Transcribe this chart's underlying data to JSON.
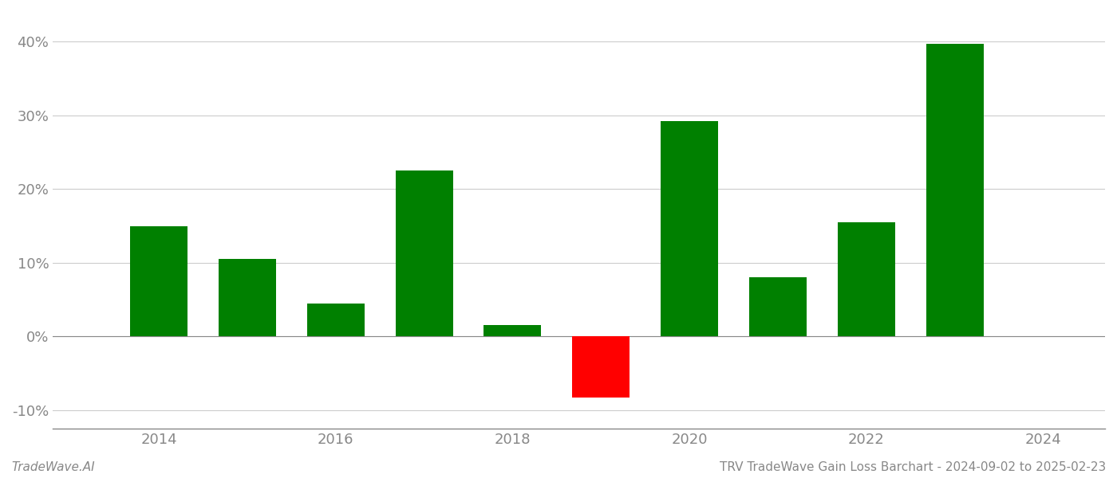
{
  "years": [
    2014,
    2015,
    2016,
    2017,
    2018,
    2019,
    2020,
    2021,
    2022,
    2023
  ],
  "values": [
    14.9,
    10.5,
    4.5,
    22.5,
    1.6,
    -8.3,
    29.2,
    8.0,
    15.5,
    39.7
  ],
  "colors": [
    "#008000",
    "#008000",
    "#008000",
    "#008000",
    "#008000",
    "#ff0000",
    "#008000",
    "#008000",
    "#008000",
    "#008000"
  ],
  "bar_width": 0.65,
  "xlim": [
    2012.8,
    2024.7
  ],
  "ylim": [
    -12.5,
    44.0
  ],
  "xticks": [
    2014,
    2016,
    2018,
    2020,
    2022,
    2024
  ],
  "yticks": [
    -10,
    0,
    10,
    20,
    30,
    40
  ],
  "grid_color": "#cccccc",
  "bg_color": "#ffffff",
  "footer_left": "TradeWave.AI",
  "footer_right": "TRV TradeWave Gain Loss Barchart - 2024-09-02 to 2025-02-23",
  "footer_fontsize": 11,
  "tick_label_fontsize": 13,
  "tick_label_color": "#888888",
  "spine_color": "#888888",
  "zero_line_color": "#888888",
  "bottom_line_color": "#888888"
}
